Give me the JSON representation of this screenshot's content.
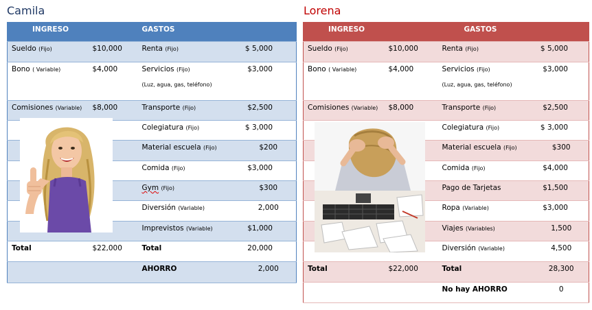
{
  "camila": {
    "name": "Camila",
    "header": {
      "ingreso": "INGRESO",
      "gastos": "GASTOS"
    },
    "rows": [
      {
        "inc_label": "Sueldo",
        "inc_tag": "(Fijo)",
        "inc_amount": "$10,000",
        "exp_label": "Renta",
        "exp_tag": "(Fijo)",
        "exp_amount": "$ 5,000"
      },
      {
        "inc_label": "Bono",
        "inc_tag": "( Variable)",
        "inc_amount": "$4,000",
        "exp_label": "Servicios",
        "exp_tag": "(Fijo)",
        "exp_note": "(Luz, agua, gas, teléfono)",
        "exp_amount": "$3,000"
      },
      {
        "inc_label": "Comisiones",
        "inc_tag": "(Variable)",
        "inc_amount": "$8,000",
        "exp_label": "Transporte",
        "exp_tag": "(Fijo)",
        "exp_amount": "$2,500"
      },
      {
        "exp_label": "Colegiatura",
        "exp_tag": "(Fijo)",
        "exp_amount": "$ 3,000"
      },
      {
        "exp_label": "Material escuela",
        "exp_tag": "(Fijo)",
        "exp_amount": "$200"
      },
      {
        "exp_label": "Comida",
        "exp_tag": "(Fijo)",
        "exp_amount": "$3,000"
      },
      {
        "exp_label": "Gym",
        "exp_tag": "(Fijo)",
        "exp_amount": "$300"
      },
      {
        "exp_label": "Diversión",
        "exp_tag": "(Variable)",
        "exp_amount": "2,000"
      },
      {
        "exp_label": "Imprevistos",
        "exp_tag": "(Variable)",
        "exp_amount": "$1,000"
      }
    ],
    "total": {
      "inc_label": "Total",
      "inc_amount": "$22,000",
      "exp_label": "Total",
      "exp_amount": "20,000"
    },
    "ahorro": {
      "label": "AHORRO",
      "amount": "2,000"
    }
  },
  "lorena": {
    "name": "Lorena",
    "header": {
      "ingreso": "INGRESO",
      "gastos": "GASTOS"
    },
    "rows": [
      {
        "inc_label": "Sueldo",
        "inc_tag": "(Fijo)",
        "inc_amount": "$10,000",
        "exp_label": "Renta",
        "exp_tag": "(Fijo)",
        "exp_amount": "$ 5,000"
      },
      {
        "inc_label": "Bono",
        "inc_tag": "( Variable)",
        "inc_amount": "$4,000",
        "exp_label": "Servicios",
        "exp_tag": "(Fijo)",
        "exp_note": "(Luz, agua, gas, teléfono)",
        "exp_amount": "$3,000"
      },
      {
        "inc_label": "Comisiones",
        "inc_tag": "(Variable)",
        "inc_amount": "$8,000",
        "exp_label": "Transporte",
        "exp_tag": "(Fijo)",
        "exp_amount": "$2,500"
      },
      {
        "exp_label": "Colegiatura",
        "exp_tag": "(Fijo)",
        "exp_amount": "$ 3,000"
      },
      {
        "exp_label": "Material escuela",
        "exp_tag": "(Fijo)",
        "exp_amount": "$300"
      },
      {
        "exp_label": "Comida",
        "exp_tag": "(Fijo)",
        "exp_amount": "$4,000"
      },
      {
        "exp_label": "Pago de Tarjetas",
        "exp_tag": "",
        "exp_amount": "$1,500"
      },
      {
        "exp_label": "Ropa",
        "exp_tag": "(Variable)",
        "exp_amount": "$3,000"
      },
      {
        "exp_label": "Viajes",
        "exp_tag": "(Variables)",
        "exp_amount": "1,500"
      },
      {
        "exp_label": "Diversión",
        "exp_tag": "(Variable)",
        "exp_amount": "4,500"
      }
    ],
    "total": {
      "inc_label": "Total",
      "inc_amount": "$22,000",
      "exp_label": "Total",
      "exp_amount": "28,300"
    },
    "ahorro": {
      "label": "No hay AHORRO",
      "amount": "0"
    }
  },
  "colors": {
    "camila_header": "#4f81bd",
    "camila_band": "#d3dfee",
    "lorena_header": "#c0504d",
    "lorena_band": "#f2dbdb"
  },
  "images": {
    "camila_photo": "happy-woman-thumbs-up-photo",
    "lorena_photo": "stressed-woman-with-bills-photo"
  }
}
